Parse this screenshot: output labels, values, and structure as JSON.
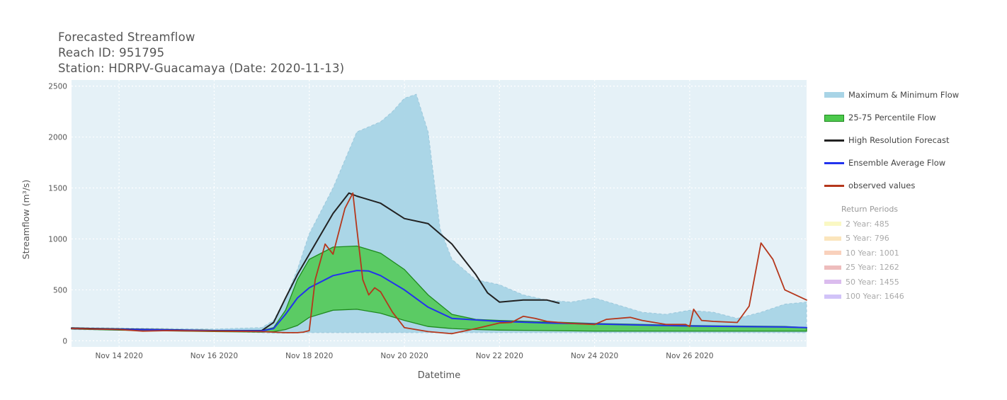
{
  "header": {
    "title": "Forecasted Streamflow",
    "reach": "Reach ID: 951795",
    "station": "Station: HDRPV-Guacamaya (Date: 2020-11-13)"
  },
  "legend": {
    "items": [
      {
        "label": "Maximum & Minimum Flow",
        "color": "#a8d4e6",
        "kind": "band"
      },
      {
        "label": "25-75 Percentile Flow",
        "color": "#4cc94c",
        "kind": "band"
      },
      {
        "label": "High Resolution Forecast",
        "color": "#222222",
        "kind": "line"
      },
      {
        "label": "Ensemble Average Flow",
        "color": "#2233ee",
        "kind": "line"
      },
      {
        "label": "observed values",
        "color": "#b5371c",
        "kind": "line"
      }
    ],
    "return_periods_title": "Return Periods",
    "return_periods": [
      {
        "label": "2 Year: 485",
        "color": "#f5f07a"
      },
      {
        "label": "5 Year: 796",
        "color": "#f7c56a"
      },
      {
        "label": "10 Year: 1001",
        "color": "#f29a6a"
      },
      {
        "label": "25 Year: 1262",
        "color": "#d96a6a"
      },
      {
        "label": "50 Year: 1455",
        "color": "#b06ad9"
      },
      {
        "label": "100 Year: 1646",
        "color": "#9a7af0"
      }
    ]
  },
  "chart_data": {
    "type": "line",
    "xlabel": "Datetime",
    "ylabel": "Streamflow (m³/s)",
    "ylim": [
      -60,
      2560
    ],
    "xlim": [
      "2020-11-13",
      "2020-11-28T11:00"
    ],
    "x_ticks": [
      "2020-11-14",
      "2020-11-16",
      "2020-11-18",
      "2020-11-20",
      "2020-11-22",
      "2020-11-24",
      "2020-11-26"
    ],
    "x_tick_labels": [
      "Nov 14 2020",
      "Nov 16 2020",
      "Nov 18 2020",
      "Nov 20 2020",
      "Nov 22 2020",
      "Nov 24 2020",
      "Nov 26 2020"
    ],
    "y_ticks": [
      0,
      500,
      1000,
      1500,
      2000,
      2500
    ],
    "y_tick_labels": [
      "0",
      "500",
      "1000",
      "1500",
      "2000",
      "2500"
    ],
    "grid": true,
    "legend_position": "right",
    "bands": [
      {
        "name": "Maximum & Minimum Flow",
        "color": "#a8d4e6",
        "x": [
          "2020-11-13",
          "2020-11-14",
          "2020-11-15",
          "2020-11-16",
          "2020-11-17",
          "2020-11-17T06:00",
          "2020-11-17T12:00",
          "2020-11-17T18:00",
          "2020-11-18",
          "2020-11-18T12:00",
          "2020-11-19",
          "2020-11-19T12:00",
          "2020-11-19T18:00",
          "2020-11-20",
          "2020-11-20T06:00",
          "2020-11-20T12:00",
          "2020-11-20T18:00",
          "2020-11-21",
          "2020-11-21T12:00",
          "2020-11-22",
          "2020-11-22T12:00",
          "2020-11-23",
          "2020-11-23T12:00",
          "2020-11-24",
          "2020-11-24T12:00",
          "2020-11-25",
          "2020-11-25T12:00",
          "2020-11-26",
          "2020-11-26T12:00",
          "2020-11-27",
          "2020-11-27T12:00",
          "2020-11-28",
          "2020-11-28T11:00"
        ],
        "upper": [
          130,
          125,
          120,
          115,
          130,
          200,
          420,
          700,
          1050,
          1500,
          2050,
          2150,
          2250,
          2380,
          2420,
          2050,
          1100,
          800,
          600,
          550,
          450,
          400,
          380,
          420,
          350,
          280,
          260,
          300,
          280,
          220,
          280,
          360,
          380
        ],
        "lower": [
          110,
          105,
          100,
          95,
          80,
          75,
          75,
          78,
          80,
          80,
          80,
          80,
          80,
          80,
          80,
          80,
          80,
          80,
          80,
          80,
          80,
          80,
          80,
          80,
          80,
          80,
          80,
          80,
          80,
          80,
          80,
          80,
          80
        ]
      },
      {
        "name": "25-75 Percentile Flow",
        "color": "#4cc94c",
        "x": [
          "2020-11-13",
          "2020-11-14",
          "2020-11-15",
          "2020-11-16",
          "2020-11-17",
          "2020-11-17T06:00",
          "2020-11-17T12:00",
          "2020-11-17T18:00",
          "2020-11-18",
          "2020-11-18T12:00",
          "2020-11-19",
          "2020-11-19T12:00",
          "2020-11-20",
          "2020-11-20T12:00",
          "2020-11-21",
          "2020-11-21T12:00",
          "2020-11-22",
          "2020-11-23",
          "2020-11-24",
          "2020-11-25",
          "2020-11-26",
          "2020-11-27",
          "2020-11-28",
          "2020-11-28T11:00"
        ],
        "upper": [
          125,
          115,
          108,
          102,
          100,
          130,
          300,
          600,
          800,
          920,
          930,
          860,
          700,
          450,
          260,
          210,
          200,
          185,
          170,
          160,
          150,
          145,
          140,
          130
        ],
        "lower": [
          115,
          105,
          98,
          90,
          85,
          90,
          110,
          150,
          230,
          300,
          310,
          270,
          200,
          140,
          120,
          110,
          105,
          100,
          95,
          95,
          95,
          95,
          95,
          95
        ]
      }
    ],
    "series": [
      {
        "name": "High Resolution Forecast",
        "color": "#222222",
        "width": 2,
        "x": [
          "2020-11-13",
          "2020-11-14",
          "2020-11-15",
          "2020-11-16",
          "2020-11-17",
          "2020-11-17T06:00",
          "2020-11-17T12:00",
          "2020-11-17T18:00",
          "2020-11-18",
          "2020-11-18T12:00",
          "2020-11-18T20:00",
          "2020-11-19",
          "2020-11-19T12:00",
          "2020-11-20",
          "2020-11-20T12:00",
          "2020-11-21",
          "2020-11-21T12:00",
          "2020-11-21T18:00",
          "2020-11-22",
          "2020-11-22T12:00",
          "2020-11-23",
          "2020-11-23T06:00"
        ],
        "values": [
          125,
          115,
          108,
          100,
          100,
          180,
          420,
          650,
          850,
          1250,
          1450,
          1420,
          1350,
          1200,
          1150,
          950,
          650,
          470,
          380,
          400,
          400,
          370
        ]
      },
      {
        "name": "Ensemble Average Flow",
        "color": "#2233ee",
        "width": 2,
        "x": [
          "2020-11-13",
          "2020-11-14",
          "2020-11-15",
          "2020-11-16",
          "2020-11-17",
          "2020-11-17T06:00",
          "2020-11-17T12:00",
          "2020-11-17T18:00",
          "2020-11-18",
          "2020-11-18T12:00",
          "2020-11-19",
          "2020-11-19T06:00",
          "2020-11-19T12:00",
          "2020-11-20",
          "2020-11-20T12:00",
          "2020-11-21",
          "2020-11-22",
          "2020-11-23",
          "2020-11-24",
          "2020-11-25",
          "2020-11-26",
          "2020-11-27",
          "2020-11-28",
          "2020-11-28T11:00"
        ],
        "values": [
          120,
          112,
          106,
          98,
          97,
          120,
          260,
          420,
          520,
          640,
          690,
          685,
          640,
          500,
          330,
          220,
          190,
          175,
          165,
          155,
          145,
          140,
          135,
          130
        ]
      },
      {
        "name": "observed values",
        "color": "#b5371c",
        "width": 1.8,
        "x": [
          "2020-11-13",
          "2020-11-14",
          "2020-11-14T12:00",
          "2020-11-15",
          "2020-11-16",
          "2020-11-17",
          "2020-11-17T12:00",
          "2020-11-17T18:00",
          "2020-11-17T21:00",
          "2020-11-18",
          "2020-11-18T03:00",
          "2020-11-18T08:00",
          "2020-11-18T12:00",
          "2020-11-18T18:00",
          "2020-11-18T22:00",
          "2020-11-19",
          "2020-11-19T03:00",
          "2020-11-19T06:00",
          "2020-11-19T09:00",
          "2020-11-19T12:00",
          "2020-11-19T18:00",
          "2020-11-20",
          "2020-11-20T12:00",
          "2020-11-21",
          "2020-11-21T12:00",
          "2020-11-22",
          "2020-11-22T06:00",
          "2020-11-22T12:00",
          "2020-11-22T18:00",
          "2020-11-23",
          "2020-11-23T12:00",
          "2020-11-24",
          "2020-11-24T06:00",
          "2020-11-24T18:00",
          "2020-11-25",
          "2020-11-25T12:00",
          "2020-11-25T22:00",
          "2020-11-26",
          "2020-11-26T02:00",
          "2020-11-26T06:00",
          "2020-11-26T12:00",
          "2020-11-27",
          "2020-11-27T06:00",
          "2020-11-27T12:00",
          "2020-11-27T18:00",
          "2020-11-28",
          "2020-11-28T11:00"
        ],
        "values": [
          120,
          110,
          95,
          100,
          95,
          90,
          80,
          80,
          85,
          100,
          600,
          950,
          850,
          1300,
          1450,
          1100,
          600,
          450,
          520,
          480,
          280,
          130,
          90,
          70,
          120,
          175,
          180,
          240,
          220,
          190,
          170,
          160,
          210,
          230,
          200,
          160,
          160,
          140,
          310,
          200,
          190,
          180,
          340,
          960,
          800,
          500,
          400
        ]
      }
    ]
  }
}
